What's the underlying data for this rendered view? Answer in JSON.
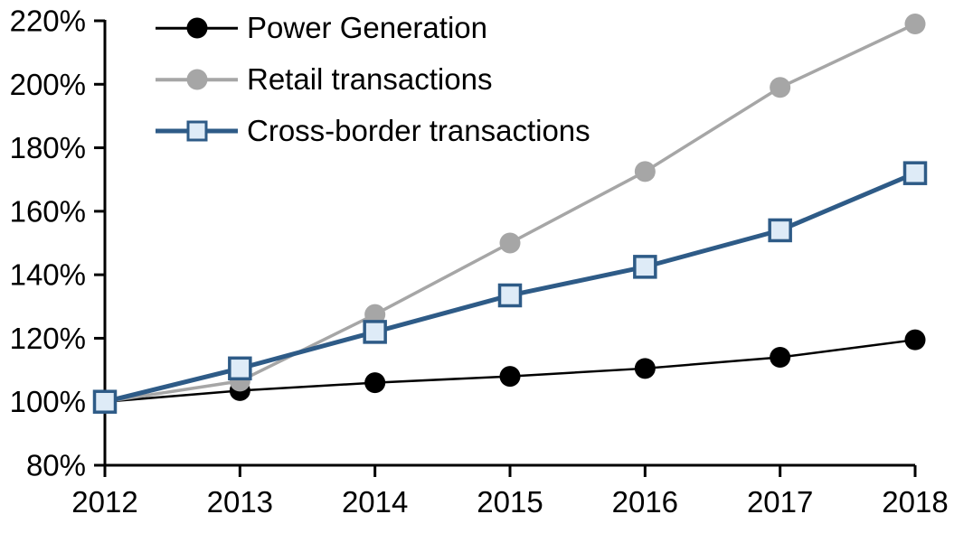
{
  "chart_data": {
    "type": "line",
    "x": [
      "2012",
      "2013",
      "2014",
      "2015",
      "2016",
      "2017",
      "2018"
    ],
    "series": [
      {
        "name": "Power Generation",
        "color": "#000000",
        "marker": "circle",
        "marker_fill": "#000000",
        "line_width": 2.5,
        "values": [
          100,
          103.5,
          106,
          108,
          110.5,
          114,
          119.5
        ]
      },
      {
        "name": "Retail transactions",
        "color": "#A6A6A6",
        "marker": "circle",
        "marker_fill": "#A6A6A6",
        "line_width": 3.5,
        "values": [
          100,
          106.5,
          127.5,
          150,
          172.5,
          199,
          219
        ]
      },
      {
        "name": "Cross-border transactions",
        "color": "#2E5B87",
        "marker": "square",
        "marker_fill": "#DEEBF7",
        "line_width": 5,
        "values": [
          100,
          110.5,
          122,
          133.5,
          142.5,
          154,
          172
        ]
      }
    ],
    "title": "",
    "xlabel": "",
    "ylabel": "",
    "ylim": [
      80,
      220
    ],
    "y_ticks": [
      80,
      100,
      120,
      140,
      160,
      180,
      200,
      220
    ],
    "y_tick_labels": [
      "80%",
      "100%",
      "120%",
      "140%",
      "160%",
      "180%",
      "200%",
      "220%"
    ],
    "x_tick_labels": [
      "2012",
      "2013",
      "2014",
      "2015",
      "2016",
      "2017",
      "2018"
    ],
    "grid": false,
    "legend_position": "top-left",
    "axis_color": "#000000",
    "text_color": "#000000"
  }
}
